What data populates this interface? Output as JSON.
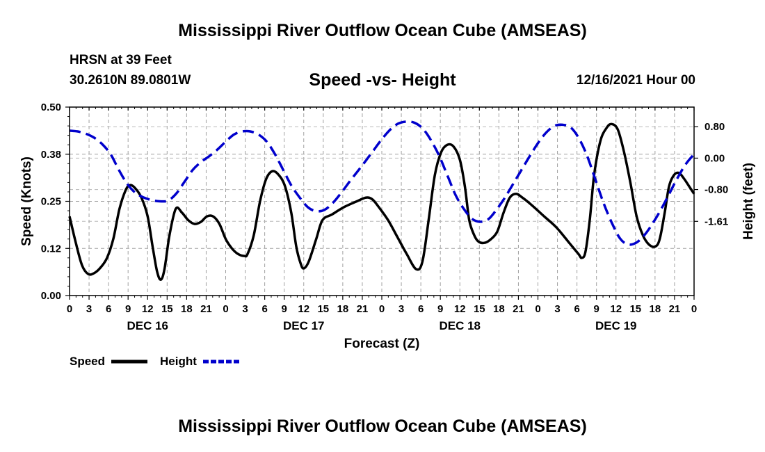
{
  "header": {
    "title": "Mississippi River Outflow Ocean Cube (AMSEAS)",
    "station": "HRSN at 39 Feet",
    "coords": "30.2610N  89.0801W",
    "subtitle": "Speed -vs- Height",
    "datestamp": "12/16/2021 Hour 00"
  },
  "footer": {
    "title": "Mississippi River Outflow Ocean Cube (AMSEAS)"
  },
  "chart_data": {
    "type": "line",
    "title": "Speed -vs- Height",
    "xlabel": "Forecast (Z)",
    "ylabel": "Speed (Knots)",
    "y2label": "Height (feet)",
    "xlim": [
      0,
      96
    ],
    "ylim": [
      0,
      0.5
    ],
    "y2lim": [
      -3.5,
      1.3
    ],
    "yticks": [
      0,
      0.125,
      0.25,
      0.375,
      0.5
    ],
    "ytick_labels": [
      "0.00",
      "0.12",
      "0.25",
      "0.38",
      "0.50"
    ],
    "y2ticks": [
      0.8,
      0,
      -0.8,
      -1.61
    ],
    "y2tick_labels": [
      "0.80",
      "0.00",
      "-0.80",
      "-1.61"
    ],
    "xticks": [
      0,
      3,
      6,
      9,
      12,
      15,
      18,
      21,
      24,
      27,
      30,
      33,
      36,
      39,
      42,
      45,
      48,
      51,
      54,
      57,
      60,
      63,
      66,
      69,
      72,
      75,
      78,
      81,
      84,
      87,
      90,
      93,
      96
    ],
    "xtick_labels": [
      "0",
      "3",
      "6",
      "9",
      "12",
      "15",
      "18",
      "21",
      "0",
      "3",
      "6",
      "9",
      "12",
      "15",
      "18",
      "21",
      "0",
      "3",
      "6",
      "9",
      "12",
      "15",
      "18",
      "21",
      "0",
      "3",
      "6",
      "9",
      "12",
      "15",
      "18",
      "21",
      "0"
    ],
    "day_labels": [
      {
        "x": 12,
        "label": "DEC 16"
      },
      {
        "x": 36,
        "label": "DEC 17"
      },
      {
        "x": 60,
        "label": "DEC 18"
      },
      {
        "x": 84,
        "label": "DEC 19"
      }
    ],
    "grid": true,
    "legend": {
      "position": "bottom-left",
      "entries": [
        {
          "name": "Speed",
          "style": "solid",
          "color": "#000000"
        },
        {
          "name": "Height",
          "style": "dashed",
          "color": "#0000cc"
        }
      ]
    },
    "series": [
      {
        "name": "Speed",
        "axis": "left",
        "color": "#000000",
        "points": [
          [
            0,
            0.21
          ],
          [
            1,
            0.14
          ],
          [
            2,
            0.08
          ],
          [
            3,
            0.057
          ],
          [
            4,
            0.06
          ],
          [
            5,
            0.075
          ],
          [
            6,
            0.1
          ],
          [
            7,
            0.15
          ],
          [
            8,
            0.23
          ],
          [
            9,
            0.28
          ],
          [
            9.7,
            0.293
          ],
          [
            10.5,
            0.285
          ],
          [
            11.5,
            0.26
          ],
          [
            12.5,
            0.21
          ],
          [
            13.3,
            0.13
          ],
          [
            14,
            0.065
          ],
          [
            14.6,
            0.042
          ],
          [
            15.2,
            0.07
          ],
          [
            16,
            0.16
          ],
          [
            17,
            0.23
          ],
          [
            18,
            0.22
          ],
          [
            19,
            0.2
          ],
          [
            20,
            0.19
          ],
          [
            21,
            0.195
          ],
          [
            22,
            0.21
          ],
          [
            23,
            0.21
          ],
          [
            24,
            0.19
          ],
          [
            25,
            0.15
          ],
          [
            26,
            0.125
          ],
          [
            27,
            0.11
          ],
          [
            28,
            0.105
          ],
          [
            28.5,
            0.11
          ],
          [
            29.5,
            0.16
          ],
          [
            30.5,
            0.25
          ],
          [
            31.5,
            0.31
          ],
          [
            32.5,
            0.33
          ],
          [
            33.5,
            0.32
          ],
          [
            34.5,
            0.29
          ],
          [
            35.5,
            0.22
          ],
          [
            36.3,
            0.13
          ],
          [
            37,
            0.085
          ],
          [
            37.5,
            0.072
          ],
          [
            38.3,
            0.09
          ],
          [
            39.5,
            0.15
          ],
          [
            40.5,
            0.2
          ],
          [
            42,
            0.215
          ],
          [
            44,
            0.235
          ],
          [
            46,
            0.25
          ],
          [
            47.5,
            0.26
          ],
          [
            48.5,
            0.255
          ],
          [
            49.5,
            0.235
          ],
          [
            51,
            0.2
          ],
          [
            52.5,
            0.155
          ],
          [
            54,
            0.11
          ],
          [
            55.5,
            0.07
          ],
          [
            56.5,
            0.09
          ],
          [
            57.5,
            0.2
          ],
          [
            58.5,
            0.32
          ],
          [
            59.5,
            0.38
          ],
          [
            60.5,
            0.4
          ],
          [
            61.5,
            0.395
          ],
          [
            62.5,
            0.36
          ],
          [
            63.3,
            0.29
          ],
          [
            64,
            0.2
          ],
          [
            64.8,
            0.16
          ],
          [
            65.5,
            0.143
          ],
          [
            66.5,
            0.14
          ],
          [
            67.5,
            0.15
          ],
          [
            68.5,
            0.17
          ],
          [
            69.5,
            0.22
          ],
          [
            70.5,
            0.26
          ],
          [
            71.5,
            0.27
          ],
          [
            72.5,
            0.26
          ],
          [
            74,
            0.24
          ],
          [
            76,
            0.21
          ],
          [
            78,
            0.18
          ],
          [
            80,
            0.14
          ],
          [
            81.5,
            0.11
          ],
          [
            82,
            0.1
          ],
          [
            82.6,
            0.115
          ],
          [
            83.3,
            0.2
          ],
          [
            84,
            0.32
          ],
          [
            85,
            0.41
          ],
          [
            86,
            0.445
          ],
          [
            86.8,
            0.455
          ],
          [
            87.8,
            0.44
          ],
          [
            88.8,
            0.38
          ],
          [
            89.8,
            0.3
          ],
          [
            90.8,
            0.21
          ],
          [
            91.8,
            0.16
          ],
          [
            92.8,
            0.135
          ],
          [
            93.8,
            0.13
          ],
          [
            94.5,
            0.15
          ],
          [
            95.3,
            0.22
          ],
          [
            96,
            0.29
          ],
          [
            96.8,
            0.32
          ],
          [
            97.6,
            0.325
          ],
          [
            98.4,
            0.31
          ],
          [
            99.2,
            0.29
          ],
          [
            100,
            0.27
          ]
        ],
        "x_scale_note": "points use hours with 100 units spanning the plotted range"
      },
      {
        "name": "Height",
        "axis": "right",
        "color": "#0000cc",
        "points": [
          [
            0,
            0.7
          ],
          [
            1,
            0.68
          ],
          [
            2,
            0.62
          ],
          [
            3,
            0.52
          ],
          [
            4,
            0.35
          ],
          [
            5,
            0.1
          ],
          [
            6,
            -0.3
          ],
          [
            7,
            -0.65
          ],
          [
            8,
            -0.88
          ],
          [
            9,
            -1.0
          ],
          [
            10,
            -1.07
          ],
          [
            11,
            -1.1
          ],
          [
            12,
            -1.08
          ],
          [
            13,
            -0.9
          ],
          [
            14,
            -0.6
          ],
          [
            15,
            -0.3
          ],
          [
            16,
            -0.1
          ],
          [
            17,
            0.05
          ],
          [
            18,
            0.22
          ],
          [
            19,
            0.42
          ],
          [
            20,
            0.6
          ],
          [
            21,
            0.68
          ],
          [
            22,
            0.68
          ],
          [
            23,
            0.6
          ],
          [
            24,
            0.42
          ],
          [
            25,
            0.1
          ],
          [
            26,
            -0.3
          ],
          [
            27,
            -0.7
          ],
          [
            28,
            -1.0
          ],
          [
            29,
            -1.25
          ],
          [
            30,
            -1.35
          ],
          [
            31,
            -1.32
          ],
          [
            32,
            -1.15
          ],
          [
            33,
            -0.9
          ],
          [
            34,
            -0.62
          ],
          [
            35,
            -0.35
          ],
          [
            36,
            -0.08
          ],
          [
            37,
            0.2
          ],
          [
            38,
            0.48
          ],
          [
            39,
            0.72
          ],
          [
            40,
            0.88
          ],
          [
            41,
            0.93
          ],
          [
            42,
            0.9
          ],
          [
            43,
            0.75
          ],
          [
            44,
            0.45
          ],
          [
            45,
            0.05
          ],
          [
            46,
            -0.45
          ],
          [
            47,
            -0.95
          ],
          [
            48,
            -1.3
          ],
          [
            49,
            -1.55
          ],
          [
            50,
            -1.62
          ],
          [
            51,
            -1.55
          ],
          [
            52,
            -1.3
          ],
          [
            53,
            -1.0
          ],
          [
            54,
            -0.65
          ],
          [
            55,
            -0.3
          ],
          [
            56,
            0.05
          ],
          [
            57,
            0.38
          ],
          [
            58,
            0.65
          ],
          [
            59,
            0.82
          ],
          [
            60,
            0.85
          ],
          [
            61,
            0.78
          ],
          [
            62,
            0.5
          ],
          [
            63,
            0.05
          ],
          [
            64,
            -0.55
          ],
          [
            65,
            -1.15
          ],
          [
            66,
            -1.65
          ],
          [
            67,
            -2.05
          ],
          [
            68,
            -2.2
          ],
          [
            69,
            -2.15
          ],
          [
            70,
            -1.95
          ],
          [
            71,
            -1.65
          ],
          [
            72,
            -1.3
          ],
          [
            73,
            -0.9
          ],
          [
            74,
            -0.5
          ],
          [
            75,
            -0.15
          ],
          [
            76,
            0.1
          ]
        ],
        "x_scale_note": "points use hours with 76 units spanning the plotted range"
      }
    ]
  }
}
